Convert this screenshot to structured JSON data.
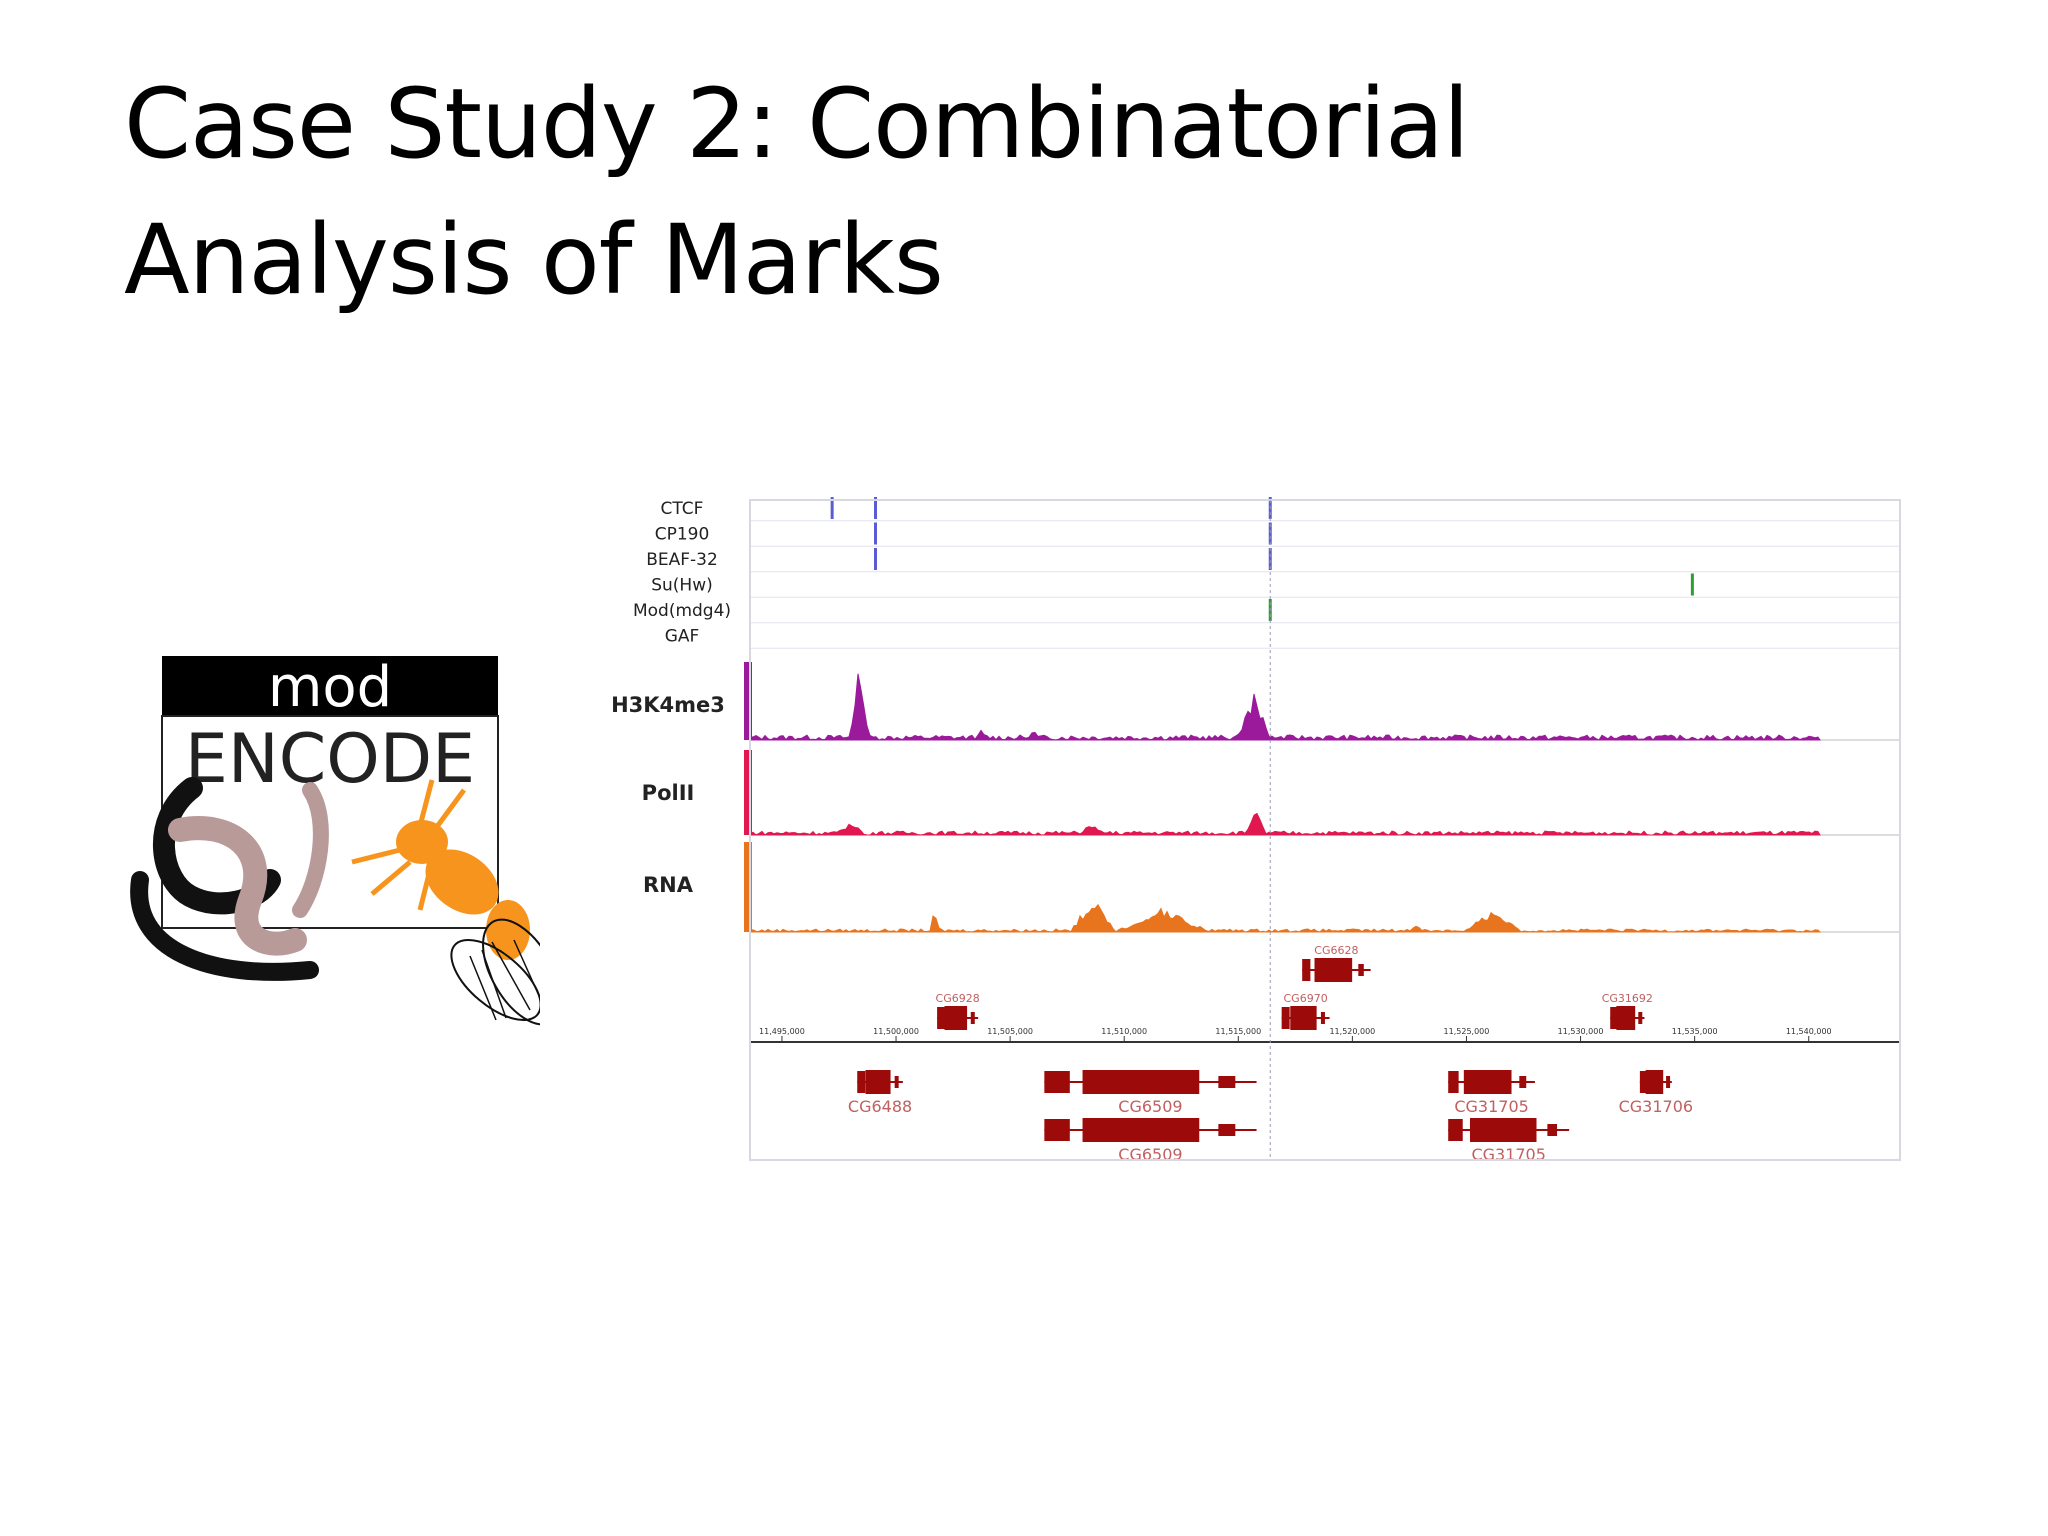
{
  "slide": {
    "title_line1": "Case Study 2: Combinatorial",
    "title_line2": "Analysis of Marks"
  },
  "logo": {
    "top_text": "mod",
    "main_text": "ENCODE",
    "colors": {
      "bar": "#000000",
      "worm_dark": "#111111",
      "worm_light": "#b89a99",
      "fly": "#f7941d"
    }
  },
  "genome_browser": {
    "binding_tracks": [
      {
        "label": "CTCF",
        "color": "#5b5bd6",
        "peaks": [
          11497200,
          11499100,
          11516400
        ]
      },
      {
        "label": "CP190",
        "color": "#5b5bd6",
        "peaks": [
          11499100,
          11516400
        ]
      },
      {
        "label": "BEAF-32",
        "color": "#5b5bd6",
        "peaks": [
          11499100,
          11516400
        ]
      },
      {
        "label": "Su(Hw)",
        "color": "#2ca02c",
        "peaks": [
          11534900
        ]
      },
      {
        "label": "Mod(mdg4)",
        "color": "#2ca02c",
        "peaks": [
          11516400
        ]
      },
      {
        "label": "GAF",
        "color": "#2ca02c",
        "peaks": []
      }
    ],
    "signal_tracks": [
      {
        "label": "H3K4me3",
        "color": "#9b1a9b"
      },
      {
        "label": "PolII",
        "color": "#e0184f"
      },
      {
        "label": "RNA",
        "color": "#e8741e"
      }
    ],
    "axis_ticks": [
      "11,495,000",
      "11,500,000",
      "11,505,000",
      "11,510,000",
      "11,515,000",
      "11,520,000",
      "11,525,000",
      "11,530,000",
      "11,535,000",
      "11,540,000"
    ],
    "genes_above": [
      {
        "name": "CG6928",
        "start": 11501800,
        "end": 11503600
      },
      {
        "name": "CG6970",
        "start": 11516900,
        "end": 11519000
      },
      {
        "name": "CG6628",
        "start": 11517800,
        "end": 11520800
      },
      {
        "name": "CG31692",
        "start": 11531300,
        "end": 11532800
      }
    ],
    "genes_below": [
      {
        "name": "CG6488",
        "start": 11498300,
        "end": 11500300
      },
      {
        "name": "CG6509",
        "start": 11506500,
        "end": 11515800
      },
      {
        "name": "CG6509",
        "start": 11506500,
        "end": 11515800
      },
      {
        "name": "CG31705",
        "start": 11524200,
        "end": 11528000
      },
      {
        "name": "CG31705",
        "start": 11524200,
        "end": 11529500
      },
      {
        "name": "CG31706",
        "start": 11532600,
        "end": 11534000
      }
    ],
    "colors": {
      "gene": "#9c0a0a",
      "grid": "#e4e4ee",
      "border": "#d8d8e2"
    }
  }
}
